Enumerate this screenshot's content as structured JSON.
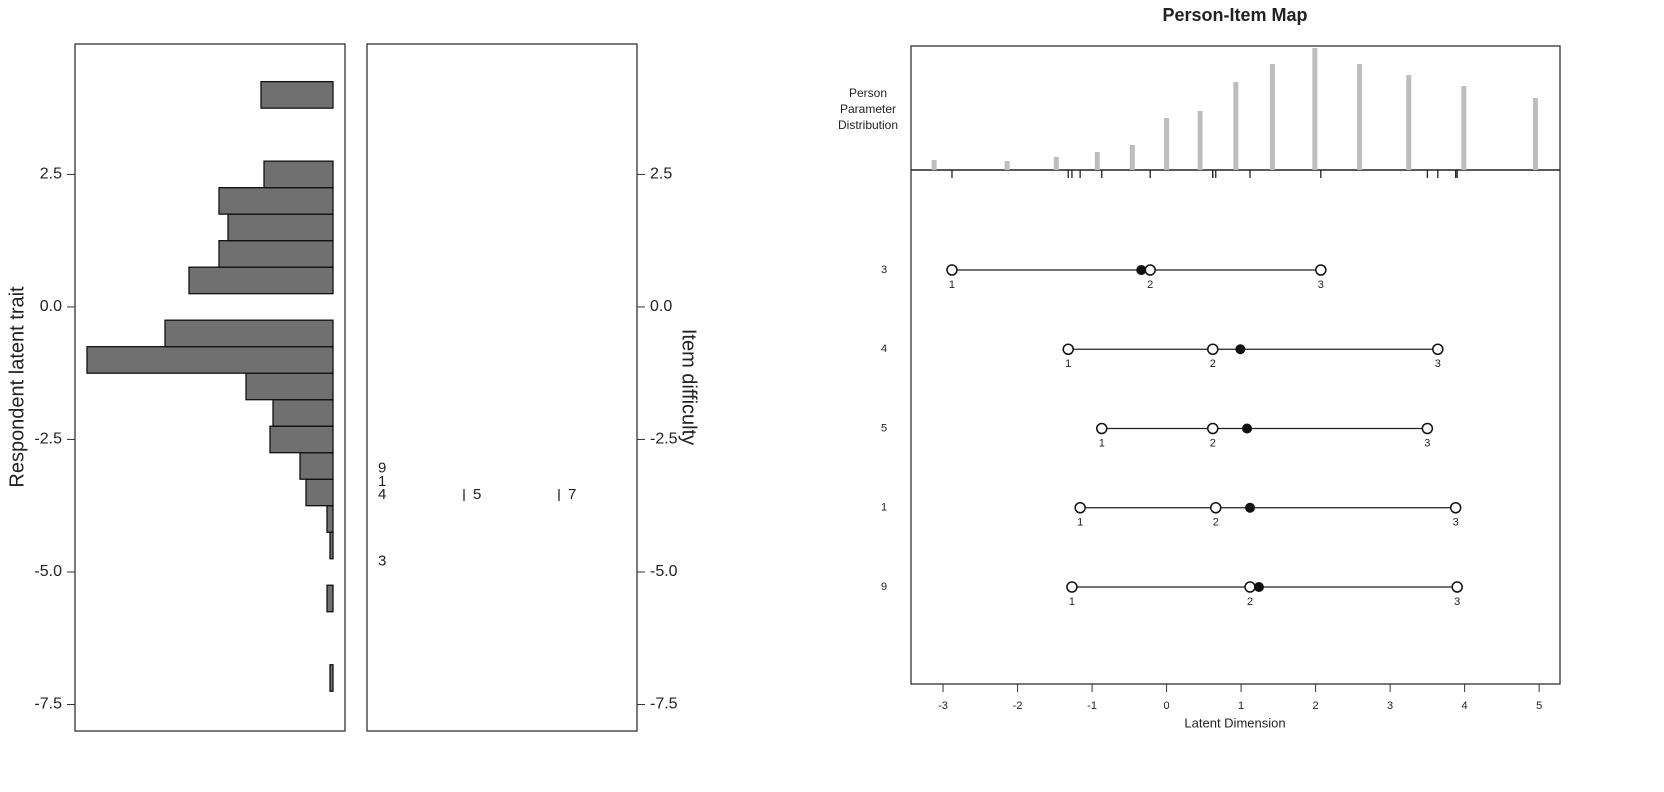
{
  "chart_data": [
    {
      "type": "wrightmap",
      "y_label": "Respondent latent trait",
      "y2_label": "Item difficulty",
      "ylim": [
        -8,
        4.96
      ],
      "yticks": [
        -7.5,
        {
          "value": -5,
          "label": "-5.0"
        },
        -2.5,
        {
          "value": 0,
          "label": "0.0"
        },
        2.5
      ],
      "bins": [
        -7.25,
        -6.75,
        -6.25,
        -5.75,
        -5.25,
        -4.75,
        -4.25,
        -3.75,
        -3.25,
        -2.75,
        -2.25,
        -1.75,
        -1.25,
        -0.75,
        -0.25,
        0.25,
        0.75,
        1.25,
        1.75,
        2.25,
        2.75,
        3.25,
        3.75,
        4.25
      ],
      "counts": [
        1,
        0,
        0,
        2,
        0,
        1,
        2,
        9,
        11,
        21,
        20,
        29,
        82,
        56,
        0,
        48,
        38,
        35,
        38,
        23,
        0,
        0,
        24
      ],
      "color": "#707070",
      "items": {
        "labels": [
          "9",
          "1",
          "4",
          "5",
          "7",
          "3"
        ],
        "values": [
          -3.05,
          -3.3,
          -3.55,
          -3.55,
          -3.55,
          -4.8
        ]
      }
    },
    {
      "type": "personitemmap",
      "title": "Person-Item Map",
      "distribution_label": [
        "Person",
        "Parameter",
        "Distribution"
      ],
      "x_label": "Latent Dimension",
      "xlim": [
        -3.43,
        5.28
      ],
      "xticks": [
        -3,
        -2,
        -1,
        0,
        1,
        2,
        3,
        4,
        5
      ],
      "distribution": {
        "x": [
          -3.12,
          -2.14,
          -1.48,
          -0.93,
          -0.46,
          0,
          0.45,
          0.93,
          1.42,
          1.99,
          2.59,
          3.25,
          3.99,
          4.95
        ],
        "values": [
          10,
          9,
          13,
          18,
          25,
          52,
          59,
          88,
          106,
          122,
          106,
          95,
          84,
          72
        ],
        "color": "#bdbdbd"
      },
      "categories": [
        "3",
        "4",
        "5",
        "1",
        "9"
      ],
      "locations": [
        -0.34,
        0.99,
        1.08,
        1.12,
        1.24
      ],
      "thresholds": [
        [
          -2.88,
          -0.22,
          2.07
        ],
        [
          -1.32,
          0.62,
          3.64
        ],
        [
          -0.87,
          0.62,
          3.5
        ],
        [
          -1.16,
          0.66,
          3.88
        ],
        [
          -1.27,
          1.12,
          3.9
        ]
      ],
      "threshold_labels": [
        "1",
        "2",
        "3"
      ]
    }
  ]
}
